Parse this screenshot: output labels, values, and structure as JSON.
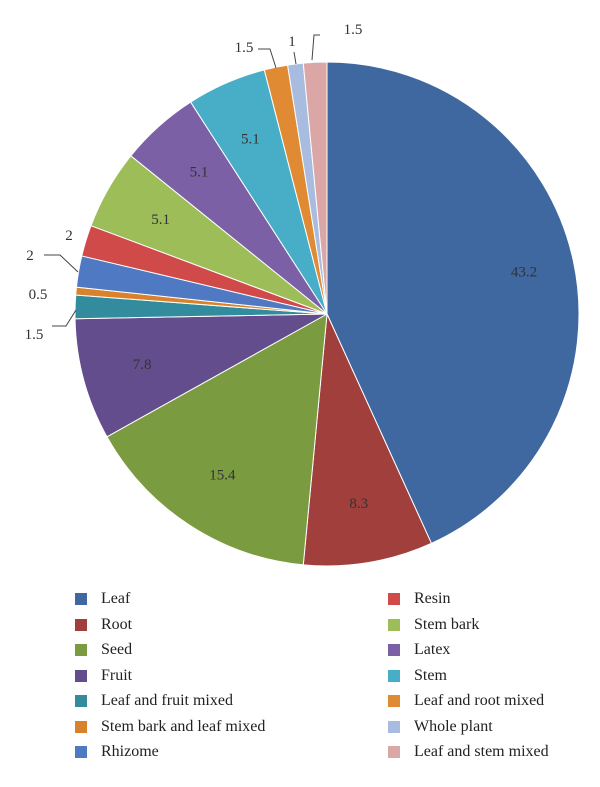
{
  "chart_data": {
    "type": "pie",
    "categories": [
      "Leaf",
      "Root",
      "Seed",
      "Fruit",
      "Leaf and fruit mixed",
      "Stem bark and leaf mixed",
      "Rhizome",
      "Resin",
      "Stem bark",
      "Latex",
      "Stem",
      "Leaf and root mixed",
      "Whole plant",
      "Leaf and stem mixed"
    ],
    "values": [
      43.2,
      8.3,
      15.4,
      7.8,
      1.5,
      0.5,
      2,
      2,
      5.1,
      5.1,
      5.1,
      1.5,
      1,
      1.5
    ],
    "data_labels": [
      "43.2",
      "8.3",
      "15.4",
      "7.8",
      "1.5",
      "0.5",
      "2",
      "2",
      "5.1",
      "5.1",
      "5.1",
      "1.5",
      "1",
      "1.5"
    ],
    "colors": [
      "#3f67a0",
      "#a13f3d",
      "#7a9b3f",
      "#634d8c",
      "#338c9e",
      "#d9822b",
      "#4f79c2",
      "#cf4a48",
      "#9cbd58",
      "#7b60a6",
      "#48aec8",
      "#e08a34",
      "#a8bcdf",
      "#dba6a6"
    ],
    "legend": {
      "placement": "bottom",
      "left_column": [
        "Leaf",
        "Root",
        "Seed",
        "Fruit",
        "Leaf and fruit mixed",
        "Stem bark and leaf mixed",
        "Rhizome"
      ],
      "right_column": [
        "Resin",
        "Stem bark",
        "Latex",
        "Stem",
        "Leaf and root mixed",
        "Whole plant",
        "Leaf and stem mixed"
      ]
    }
  }
}
